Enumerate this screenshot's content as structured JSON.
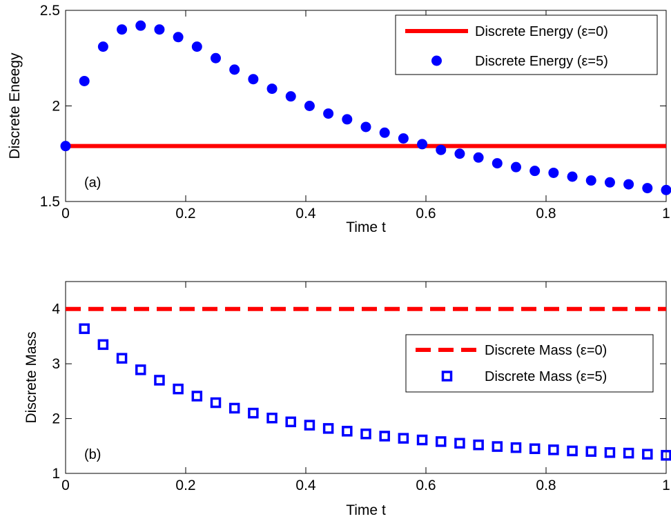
{
  "chart_data": [
    {
      "type": "line",
      "panel_label": "(a)",
      "xlabel": "Time t",
      "ylabel": "Discrete Eneegy",
      "xlim": [
        0,
        1
      ],
      "ylim": [
        1.5,
        2.5
      ],
      "xticks": [
        "0",
        "0.2",
        "0.4",
        "0.6",
        "0.8",
        "1"
      ],
      "xtick_values": [
        0,
        0.2,
        0.4,
        0.6,
        0.8,
        1
      ],
      "yticks": [
        "1.5",
        "2",
        "2.5"
      ],
      "ytick_values": [
        1.5,
        2,
        2.5
      ],
      "legend_position": "top-right",
      "series": [
        {
          "name": "Discrete Energy (ε=0)",
          "style": "solid-line",
          "color": "#ff0000",
          "x": [
            0,
            1
          ],
          "y": [
            1.79,
            1.79
          ]
        },
        {
          "name": "Discrete Energy (ε=5)",
          "style": "filled-circle",
          "color": "#0000ff",
          "x": [
            0,
            0.03125,
            0.0625,
            0.09375,
            0.125,
            0.15625,
            0.1875,
            0.21875,
            0.25,
            0.28125,
            0.3125,
            0.34375,
            0.375,
            0.40625,
            0.4375,
            0.46875,
            0.5,
            0.53125,
            0.5625,
            0.59375,
            0.625,
            0.65625,
            0.6875,
            0.71875,
            0.75,
            0.78125,
            0.8125,
            0.84375,
            0.875,
            0.90625,
            0.9375,
            0.96875,
            1.0
          ],
          "y": [
            1.79,
            2.13,
            2.31,
            2.4,
            2.42,
            2.4,
            2.36,
            2.31,
            2.25,
            2.19,
            2.14,
            2.09,
            2.05,
            2.0,
            1.96,
            1.93,
            1.89,
            1.86,
            1.83,
            1.8,
            1.77,
            1.75,
            1.73,
            1.7,
            1.68,
            1.66,
            1.65,
            1.63,
            1.61,
            1.6,
            1.59,
            1.57,
            1.56
          ]
        }
      ]
    },
    {
      "type": "line",
      "panel_label": "(b)",
      "xlabel": "Time t",
      "ylabel": "Discrete Mass",
      "xlim": [
        0,
        1
      ],
      "ylim": [
        1,
        4.5
      ],
      "xticks": [
        "0",
        "0.2",
        "0.4",
        "0.6",
        "0.8",
        "1"
      ],
      "xtick_values": [
        0,
        0.2,
        0.4,
        0.6,
        0.8,
        1
      ],
      "yticks": [
        "1",
        "2",
        "3",
        "4"
      ],
      "ytick_values": [
        1,
        2,
        3,
        4
      ],
      "legend_position": "right",
      "series": [
        {
          "name": "Discrete Mass (ε=0)",
          "style": "dashed-line",
          "color": "#ff0000",
          "x": [
            0,
            1
          ],
          "y": [
            4.0,
            4.0
          ]
        },
        {
          "name": "Discrete Mass (ε=5)",
          "style": "open-square",
          "color": "#0000ff",
          "x": [
            0.03125,
            0.0625,
            0.09375,
            0.125,
            0.15625,
            0.1875,
            0.21875,
            0.25,
            0.28125,
            0.3125,
            0.34375,
            0.375,
            0.40625,
            0.4375,
            0.46875,
            0.5,
            0.53125,
            0.5625,
            0.59375,
            0.625,
            0.65625,
            0.6875,
            0.71875,
            0.75,
            0.78125,
            0.8125,
            0.84375,
            0.875,
            0.90625,
            0.9375,
            0.96875,
            1.0
          ],
          "y": [
            3.64,
            3.35,
            3.1,
            2.89,
            2.7,
            2.54,
            2.41,
            2.29,
            2.19,
            2.1,
            2.01,
            1.94,
            1.88,
            1.82,
            1.77,
            1.72,
            1.68,
            1.64,
            1.61,
            1.58,
            1.55,
            1.52,
            1.49,
            1.47,
            1.45,
            1.43,
            1.41,
            1.4,
            1.38,
            1.37,
            1.35,
            1.33
          ]
        }
      ]
    }
  ]
}
